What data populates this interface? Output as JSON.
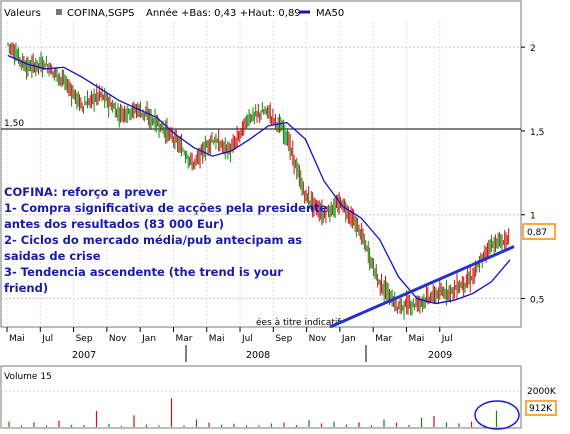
{
  "header": {
    "prefix": "Valeurs",
    "name": "COFINA,SGPS",
    "range": "Année +Bas: 0,43 +Haut: 0,89",
    "legend_label": "MA50"
  },
  "colors": {
    "up": "#118811",
    "down": "#cc1111",
    "ma": "#1111cc",
    "trend": "#2233cc",
    "price_box": "#ff8c00",
    "vol_box": "#ff8c00"
  },
  "chart_data": {
    "type": "line",
    "x_months": [
      "Mai",
      "Jul",
      "Sep",
      "Nov",
      "Jan",
      "Mar",
      "Mai",
      "Jul",
      "Sep",
      "Nov",
      "Jan",
      "Mar",
      "Mai",
      "Jul"
    ],
    "years": [
      "2007",
      "2008",
      "2009"
    ],
    "y_ticks": [
      "2",
      "1,5",
      "1",
      "0,5"
    ],
    "ylim": [
      0.33,
      2.15
    ],
    "hline_label": "1,50",
    "last_price": "0,87",
    "series": [
      {
        "name": "MA50",
        "x": [
          0,
          1,
          2,
          3,
          4,
          5,
          6,
          7,
          8,
          9,
          10,
          11,
          12,
          13,
          14,
          15,
          16,
          17,
          18,
          19,
          20,
          21,
          22,
          23,
          24,
          25,
          26,
          27
        ],
        "y": [
          1.95,
          1.9,
          1.87,
          1.88,
          1.82,
          1.75,
          1.68,
          1.63,
          1.58,
          1.48,
          1.4,
          1.35,
          1.38,
          1.45,
          1.53,
          1.55,
          1.45,
          1.2,
          1.05,
          0.98,
          0.85,
          0.63,
          0.5,
          0.47,
          0.49,
          0.53,
          0.6,
          0.73
        ]
      },
      {
        "name": "Price",
        "x": [
          0,
          1,
          2,
          3,
          4,
          5,
          6,
          7,
          8,
          9,
          10,
          11,
          12,
          13,
          14,
          15,
          16,
          17,
          18,
          19,
          20,
          21,
          22,
          23,
          24,
          25,
          26,
          27
        ],
        "y": [
          2.02,
          1.88,
          1.9,
          1.8,
          1.65,
          1.72,
          1.6,
          1.63,
          1.55,
          1.45,
          1.3,
          1.45,
          1.38,
          1.58,
          1.62,
          1.48,
          1.12,
          1.0,
          1.07,
          0.9,
          0.6,
          0.45,
          0.47,
          0.52,
          0.55,
          0.62,
          0.82,
          0.85
        ]
      }
    ],
    "trendline": {
      "x": [
        19.5,
        30.2
      ],
      "y": [
        0.33,
        0.81
      ]
    },
    "annotation": [
      "COFINA: reforço a prever",
      "1- Compra significativa de acções pela presidente",
      "antes dos resultados (83 000 Eur)",
      "2- Ciclos do mercado média/pub antecipam as",
      "saidas de crise",
      "3- Tendencia ascendente (the trend is your",
      "friend)"
    ],
    "delayed_note": "ées à titre indicatif",
    "volume": {
      "label": "Volume 15",
      "ticks": [
        "2000K"
      ],
      "last": "912K",
      "values": [
        300,
        80,
        260,
        90,
        350,
        120,
        110,
        900,
        180,
        60,
        650,
        140,
        90,
        1600,
        90,
        420,
        240,
        130,
        180,
        90,
        90,
        200,
        250,
        110,
        380,
        200,
        300,
        140,
        260,
        100,
        430,
        250,
        120,
        520,
        610,
        260,
        200,
        300,
        120,
        912
      ]
    }
  }
}
